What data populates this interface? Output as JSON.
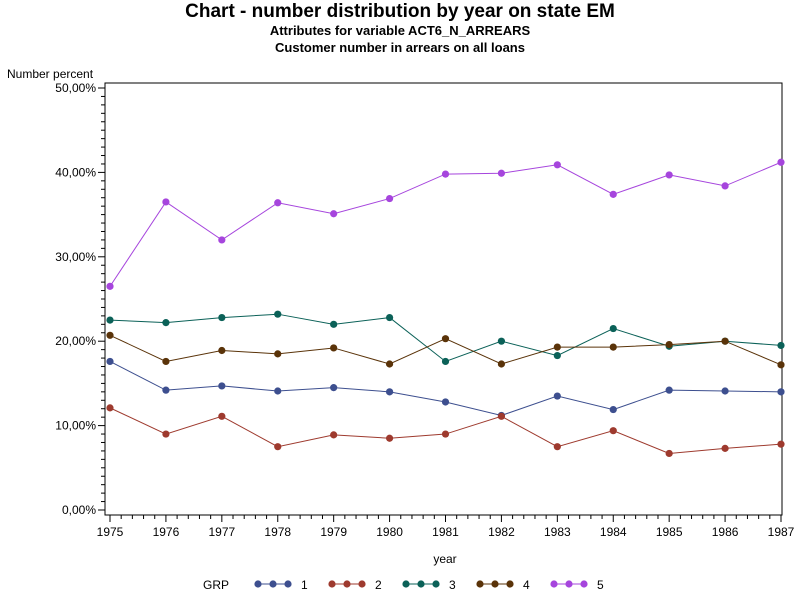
{
  "chart_data": {
    "type": "line",
    "title": "Chart - number distribution by year on state EM",
    "subtitle1": "Attributes for variable ACT6_N_ARREARS",
    "subtitle2": "Customer number in arrears on all loans",
    "xlabel": "year",
    "ylabel": "Number percent",
    "x": [
      1975,
      1976,
      1977,
      1978,
      1979,
      1980,
      1981,
      1982,
      1983,
      1984,
      1985,
      1986,
      1987
    ],
    "x_tick_labels": [
      "1975",
      "1976",
      "1977",
      "1978",
      "1979",
      "1980",
      "1981",
      "1982",
      "1983",
      "1984",
      "1985",
      "1986",
      "1987"
    ],
    "ylim": [
      0,
      50
    ],
    "y_ticks": [
      0,
      10,
      20,
      30,
      40,
      50
    ],
    "y_tick_labels": [
      "0,00%",
      "10,00%",
      "20,00%",
      "30,00%",
      "40,00%",
      "50,00%"
    ],
    "grid": false,
    "legend_title": "GRP",
    "legend_position": "bottom",
    "series": [
      {
        "name": "1",
        "color": "#3d4f8f",
        "values": [
          17.6,
          14.2,
          14.7,
          14.1,
          14.5,
          14.0,
          12.8,
          11.2,
          13.5,
          11.9,
          14.2,
          14.1,
          14.0
        ]
      },
      {
        "name": "2",
        "color": "#9e3a2e",
        "values": [
          12.1,
          9.0,
          11.1,
          7.5,
          8.9,
          8.5,
          9.0,
          11.1,
          7.5,
          9.4,
          6.7,
          7.3,
          7.8
        ]
      },
      {
        "name": "3",
        "color": "#0b6158",
        "values": [
          22.5,
          22.2,
          22.8,
          23.2,
          22.0,
          22.8,
          17.6,
          20.0,
          18.3,
          21.5,
          19.4,
          20.0,
          19.5
        ]
      },
      {
        "name": "4",
        "color": "#5a3309",
        "values": [
          20.7,
          17.6,
          18.9,
          18.5,
          19.2,
          17.3,
          20.3,
          17.3,
          19.3,
          19.3,
          19.6,
          20.0,
          17.2
        ]
      },
      {
        "name": "5",
        "color": "#a645dd",
        "values": [
          26.5,
          36.5,
          32.0,
          36.4,
          35.1,
          36.9,
          39.8,
          39.9,
          40.9,
          37.4,
          39.7,
          38.4,
          41.2
        ]
      }
    ]
  }
}
